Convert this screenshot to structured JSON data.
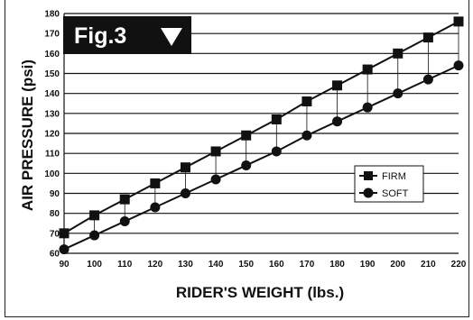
{
  "figure_label": "Fig.3",
  "colors": {
    "ink": "#111111",
    "background": "#ffffff",
    "label_box": "#111111"
  },
  "chart_data": {
    "type": "line",
    "title": "",
    "xlabel": "RIDER'S WEIGHT (lbs.)",
    "ylabel": "AIR PRESSURE (psi)",
    "x": [
      90,
      100,
      110,
      120,
      130,
      140,
      150,
      160,
      170,
      180,
      190,
      200,
      210,
      220
    ],
    "x_ticks": [
      "90",
      "100",
      "110",
      "120",
      "130",
      "140",
      "150",
      "160",
      "170",
      "180",
      "190",
      "200",
      "210",
      "220"
    ],
    "y_ticks": [
      "60",
      "70",
      "80",
      "90",
      "100",
      "110",
      "120",
      "130",
      "140",
      "150",
      "160",
      "170",
      "180"
    ],
    "xlim": [
      90,
      220
    ],
    "ylim": [
      60,
      180
    ],
    "grid": "horizontal",
    "legend_position": "right",
    "series": [
      {
        "name": "FIRM",
        "marker": "square",
        "values": [
          70,
          79,
          87,
          95,
          103,
          111,
          119,
          127,
          136,
          144,
          152,
          160,
          168,
          176
        ]
      },
      {
        "name": "SOFT",
        "marker": "circle",
        "values": [
          62,
          69,
          76,
          83,
          90,
          97,
          104,
          111,
          119,
          126,
          133,
          140,
          147,
          154
        ]
      }
    ]
  }
}
